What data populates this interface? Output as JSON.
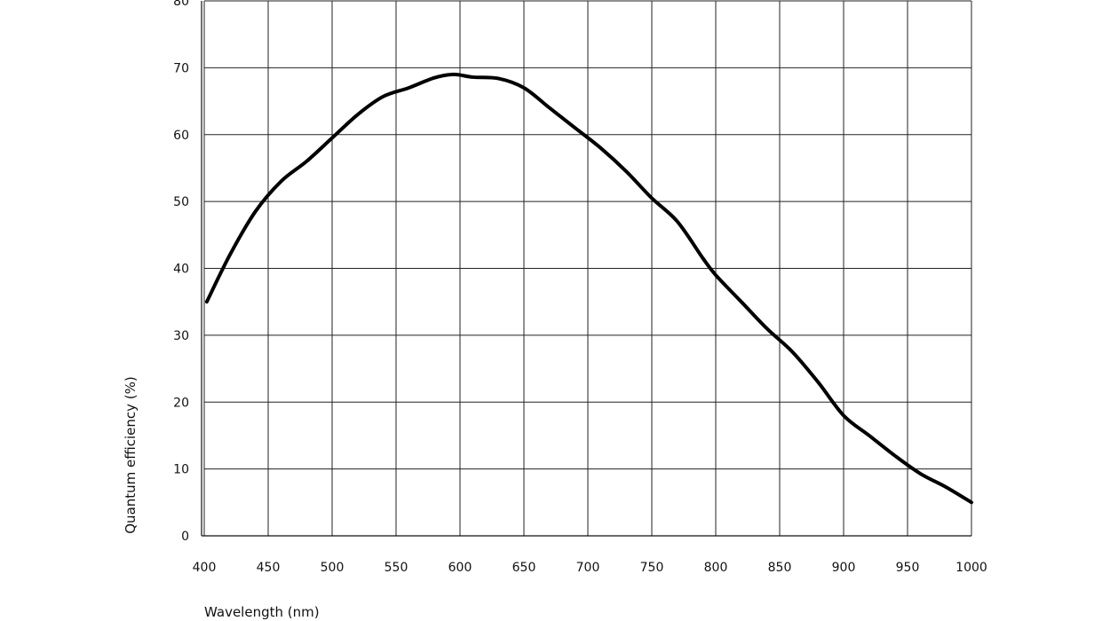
{
  "chart_data": {
    "type": "line",
    "title": "",
    "xlabel": "Wavelength (nm)",
    "ylabel": "Quantum efficiency (%)",
    "xlim": [
      400,
      1000
    ],
    "ylim": [
      0,
      80
    ],
    "x_ticks": [
      "400",
      "450",
      "500",
      "550",
      "600",
      "650",
      "700",
      "750",
      "800",
      "850",
      "900",
      "950",
      "1000"
    ],
    "y_ticks": [
      "0",
      "10",
      "20",
      "30",
      "40",
      "50",
      "60",
      "70",
      "80"
    ],
    "grid": true,
    "series": [
      {
        "color": "#000000",
        "points": [
          [
            402,
            35
          ],
          [
            420,
            42
          ],
          [
            440,
            48.5
          ],
          [
            460,
            53
          ],
          [
            480,
            56
          ],
          [
            500,
            59.5
          ],
          [
            520,
            63
          ],
          [
            540,
            65.7
          ],
          [
            560,
            67
          ],
          [
            580,
            68.5
          ],
          [
            595,
            69
          ],
          [
            610,
            68.6
          ],
          [
            630,
            68.4
          ],
          [
            650,
            67
          ],
          [
            670,
            64
          ],
          [
            690,
            61
          ],
          [
            710,
            58
          ],
          [
            730,
            54.5
          ],
          [
            750,
            50.5
          ],
          [
            770,
            47
          ],
          [
            790,
            41.5
          ],
          [
            800,
            39
          ],
          [
            820,
            35
          ],
          [
            840,
            31
          ],
          [
            860,
            27.5
          ],
          [
            880,
            23
          ],
          [
            900,
            18
          ],
          [
            920,
            15
          ],
          [
            940,
            12
          ],
          [
            960,
            9.3
          ],
          [
            980,
            7.3
          ],
          [
            1000,
            5
          ]
        ]
      }
    ]
  }
}
